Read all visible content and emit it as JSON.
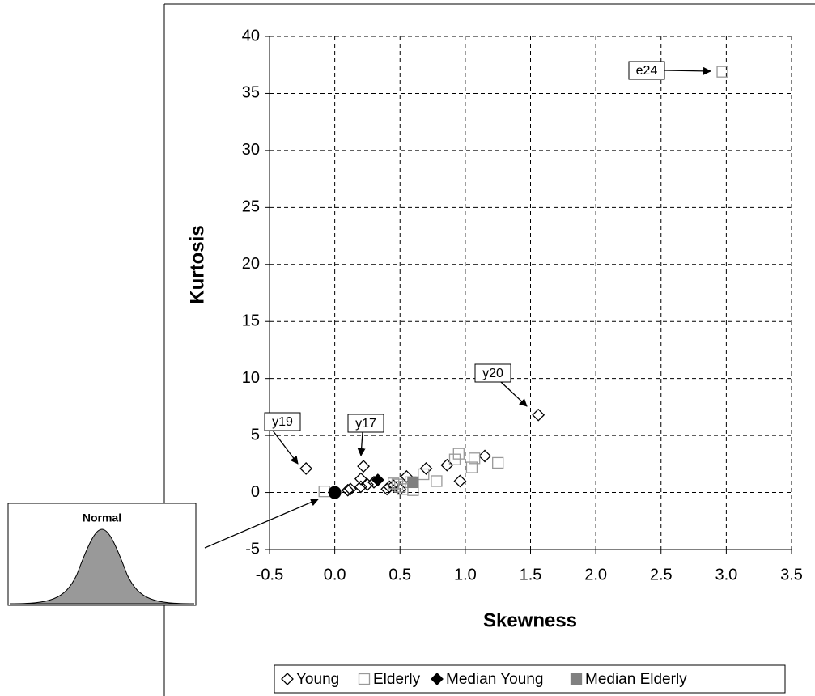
{
  "chart_data": {
    "type": "scatter",
    "x_label": "Skewness",
    "y_label": "Kurtosis",
    "xlim": [
      -0.5,
      3.5
    ],
    "ylim": [
      -5,
      40
    ],
    "xticks": [
      -0.5,
      {
        "value": 0,
        "label": "0.0"
      },
      0.5,
      {
        "value": 1,
        "label": "1.0"
      },
      1.5,
      {
        "value": 2,
        "label": "2.0"
      },
      2.5,
      {
        "value": 3,
        "label": "3.0"
      },
      3.5
    ],
    "yticks": [
      -5,
      0,
      5,
      10,
      15,
      20,
      25,
      30,
      35,
      40
    ],
    "grid": true,
    "legend": "bottom",
    "series": [
      {
        "name": "Young",
        "color": "#000000",
        "marker": "diamond",
        "filled": false,
        "x": [
          -0.22,
          0.22,
          1.56,
          0.12,
          0.1,
          0.2,
          0.2,
          0.25,
          0.3,
          0.4,
          0.42,
          0.45,
          0.5,
          0.55,
          0.7,
          0.86,
          0.96,
          1.15
        ],
        "values": [
          2.1,
          2.3,
          6.8,
          0.3,
          0.2,
          1.2,
          0.5,
          0.7,
          0.9,
          0.3,
          0.5,
          0.6,
          0.3,
          1.4,
          2.1,
          2.4,
          1.0,
          3.2
        ]
      },
      {
        "name": "Elderly",
        "color": "#999999",
        "marker": "square",
        "filled": false,
        "x": [
          2.97,
          -0.08,
          0.45,
          0.48,
          0.5,
          0.52,
          0.6,
          0.58,
          0.68,
          0.78,
          0.92,
          0.95,
          1.05,
          1.07,
          1.25
        ],
        "values": [
          36.9,
          0.1,
          0.8,
          0.7,
          0.5,
          0.3,
          0.2,
          0.9,
          1.6,
          1.0,
          2.9,
          3.4,
          2.2,
          3.0,
          2.6
        ]
      },
      {
        "name": "Median Young",
        "color": "#000000",
        "marker": "diamond",
        "filled": true,
        "x": [
          0.33
        ],
        "values": [
          1.1
        ]
      },
      {
        "name": "Median Elderly",
        "color": "#808080",
        "marker": "square",
        "filled": true,
        "x": [
          0.6
        ],
        "values": [
          0.9
        ]
      }
    ],
    "normal_point": {
      "label": "Normal",
      "x": 0,
      "y": 0,
      "color": "#000000"
    },
    "annotations": [
      "y19",
      "y17",
      "y20",
      "e24"
    ]
  }
}
